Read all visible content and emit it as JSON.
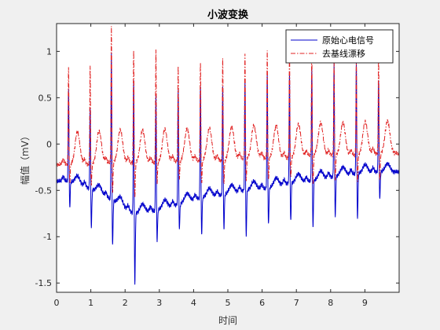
{
  "chart_data": {
    "type": "line",
    "title": "小波变换",
    "xlabel": "时间",
    "ylabel": "幅值（mV）",
    "xlim": [
      0,
      10
    ],
    "ylim": [
      -1.6,
      1.3
    ],
    "xticks": [
      0,
      1,
      2,
      3,
      4,
      5,
      6,
      7,
      8,
      9
    ],
    "yticks": [
      -1.5,
      -1,
      -0.5,
      0,
      0.5,
      1
    ],
    "ytick_labels": [
      "-1.5",
      "-1",
      "-0.5",
      "0",
      "0.5",
      "1"
    ],
    "grid": false,
    "legend_position": "top-right",
    "beat_times": [
      0.35,
      0.98,
      1.6,
      2.25,
      2.9,
      3.55,
      4.2,
      4.85,
      5.5,
      6.15,
      6.8,
      7.45,
      8.1,
      8.75,
      9.4
    ],
    "series": [
      {
        "name": "原始心电信号",
        "color": "#0000cc",
        "line_style": "solid",
        "baseline": [
          -0.4,
          -0.48,
          -0.6,
          -0.75,
          -0.72,
          -0.65,
          -0.58,
          -0.55,
          -0.5,
          -0.48,
          -0.42,
          -0.4,
          -0.35,
          -0.32,
          -0.3
        ],
        "r_peak": [
          0.62,
          0.41,
          1.0,
          0.72,
          0.55,
          0.6,
          0.65,
          0.65,
          0.7,
          0.75,
          0.77,
          0.82,
          0.87,
          0.88,
          0.7
        ],
        "s_trough": [
          -0.68,
          -0.9,
          -1.1,
          -1.52,
          -1.05,
          -0.92,
          -0.98,
          -0.92,
          -1.0,
          -0.88,
          -0.85,
          -0.92,
          -0.8,
          -0.82,
          -0.6
        ]
      },
      {
        "name": "去基线漂移",
        "color": "#e02020",
        "line_style": "dashdot",
        "baseline": [
          -0.22,
          -0.22,
          -0.2,
          -0.2,
          -0.2,
          -0.18,
          -0.18,
          -0.18,
          -0.15,
          -0.15,
          -0.15,
          -0.12,
          -0.12,
          -0.12,
          -0.1
        ],
        "r_peak": [
          0.85,
          0.86,
          1.28,
          1.03,
          1.03,
          0.85,
          0.9,
          0.95,
          0.98,
          1.0,
          1.0,
          1.02,
          0.92,
          0.9,
          0.95
        ],
        "s_trough": [
          -0.42,
          -0.45,
          -0.55,
          -0.58,
          -0.42,
          -0.38,
          -0.42,
          -0.42,
          -0.4,
          -0.4,
          -0.38,
          -0.45,
          -0.4,
          -0.42,
          -0.4
        ]
      }
    ]
  }
}
